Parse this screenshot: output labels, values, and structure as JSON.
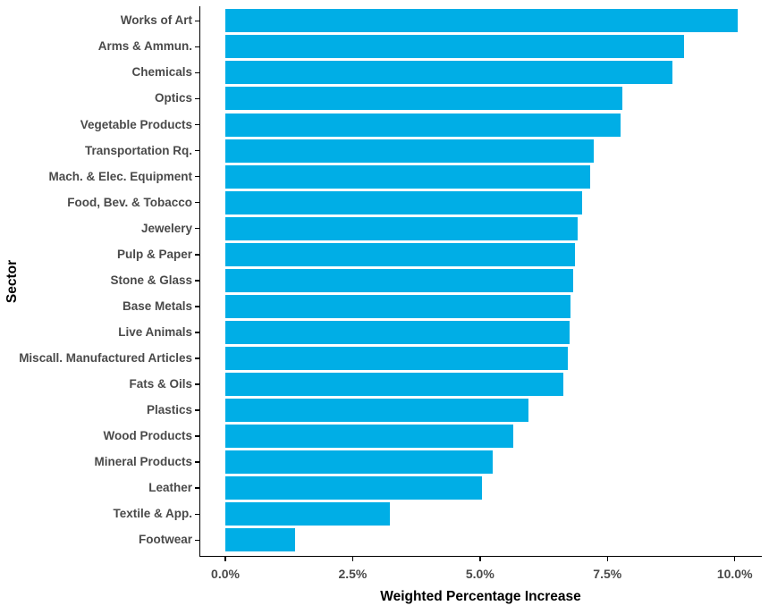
{
  "chart_data": {
    "type": "bar",
    "orientation": "horizontal",
    "title": "",
    "xlabel": "Weighted Percentage Increase",
    "ylabel": "Sector",
    "legend": "none",
    "grid": false,
    "bar_color": "#00AEE6",
    "axis_color": "#000000",
    "text_color": "#4A4A4A",
    "xlim": [
      0,
      10.55
    ],
    "x_tick_labels": [
      "0.0%",
      "2.5%",
      "5.0%",
      "7.5%",
      "10.0%"
    ],
    "x_tick_values": [
      0,
      2.5,
      5,
      7.5,
      10
    ],
    "categories": [
      "Works of Art",
      "Arms & Ammun.",
      "Chemicals",
      "Optics",
      "Vegetable Products",
      "Transportation Rq.",
      "Mach. & Elec. Equipment",
      "Food, Bev. & Tobacco",
      "Jewelery",
      "Pulp & Paper",
      "Stone & Glass",
      "Base Metals",
      "Live Animals",
      "Miscall. Manufactured Articles",
      "Fats & Oils",
      "Plastics",
      "Wood Products",
      "Mineral Products",
      "Leather",
      "Textile & App.",
      "Footwear"
    ],
    "values": [
      10.05,
      9.01,
      8.77,
      7.79,
      7.76,
      7.23,
      7.16,
      7.0,
      6.92,
      6.87,
      6.83,
      6.77,
      6.75,
      6.73,
      6.64,
      5.95,
      5.66,
      5.25,
      5.04,
      3.23,
      1.37
    ],
    "values_unit": "%"
  }
}
